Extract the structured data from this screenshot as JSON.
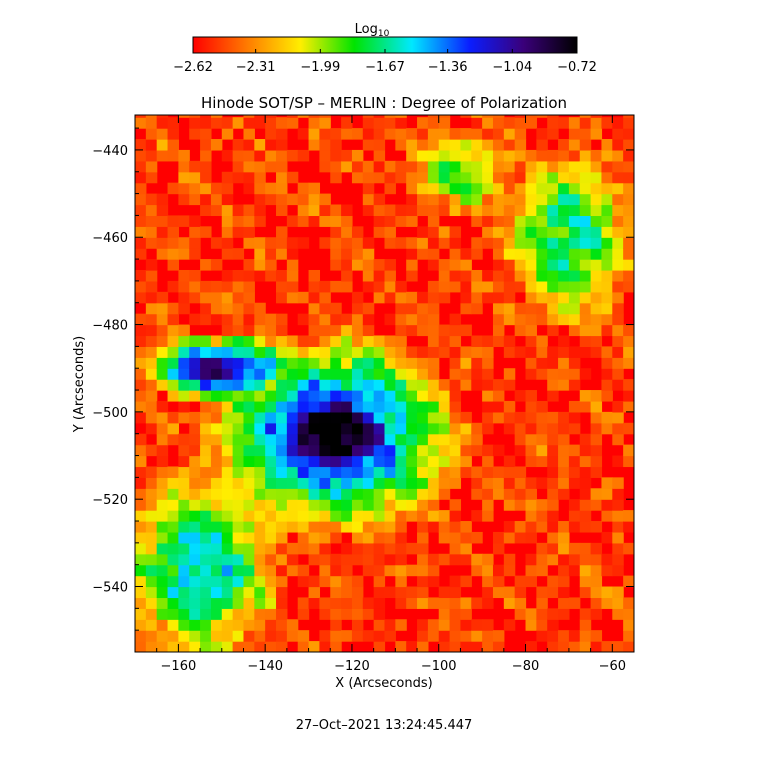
{
  "chart_data": {
    "type": "heatmap",
    "title": "Hinode SOT/SP – MERLIN : Degree of Polarization",
    "xlabel": "X (Arcseconds)",
    "ylabel": "Y (Arcseconds)",
    "xlim": [
      -170,
      -55
    ],
    "ylim": [
      -555,
      -432
    ],
    "x_ticks": [
      -160,
      -140,
      -120,
      -100,
      -80,
      -60
    ],
    "y_ticks": [
      -440,
      -460,
      -480,
      -500,
      -520,
      -540
    ],
    "x_tick_labels": [
      "−160",
      "−140",
      "−120",
      "−100",
      "−80",
      "−60"
    ],
    "y_tick_labels": [
      "−440",
      "−460",
      "−480",
      "−500",
      "−520",
      "−540"
    ],
    "colorbar": {
      "label_main": "Log",
      "label_sub": "10",
      "range": [
        -2.62,
        -0.72
      ],
      "ticks": [
        -2.62,
        -2.31,
        -1.99,
        -1.67,
        -1.36,
        -1.04,
        -0.72
      ],
      "tick_labels": [
        "−2.62",
        "−2.31",
        "−1.99",
        "−1.67",
        "−1.36",
        "−1.04",
        "−0.72"
      ],
      "colors": [
        "#ff0000",
        "#ff7a00",
        "#ffee00",
        "#00e400",
        "#00e8ff",
        "#0a1eff",
        "#3a007a",
        "#000000"
      ]
    },
    "features": [
      {
        "name": "sunspot umbra",
        "x": -124,
        "y": -505,
        "rx": 15,
        "ry": 10,
        "value": -0.72
      },
      {
        "name": "sunspot penumbra",
        "x": -124,
        "y": -505,
        "rx": 22,
        "ry": 17,
        "value": -1.2
      },
      {
        "name": "plage tail",
        "x": -150,
        "y": -490,
        "rx": 14,
        "ry": 6,
        "value": -1.1
      },
      {
        "name": "network south-west",
        "x": -155,
        "y": -535,
        "rx": 14,
        "ry": 18,
        "value": -1.6
      },
      {
        "name": "network east",
        "x": -70,
        "y": -460,
        "rx": 12,
        "ry": 16,
        "value": -1.7
      },
      {
        "name": "network north",
        "x": -95,
        "y": -445,
        "rx": 10,
        "ry": 8,
        "value": -1.9
      }
    ],
    "grid": false,
    "timestamp": "27–Oct–2021 13:24:45.447"
  }
}
